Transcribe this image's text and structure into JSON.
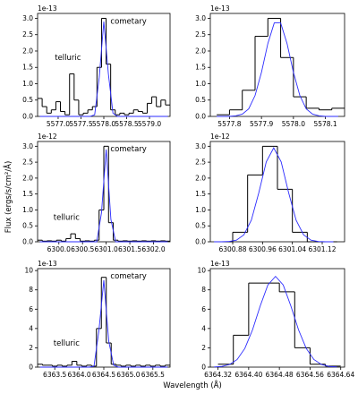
{
  "ylabel": "Flux (ergs/s/cm²/Å)",
  "xlabel": "Wavelength (Å)",
  "chart_data": [
    {
      "type": "line",
      "offset_label": "1e-13",
      "annotations": [
        "telluric",
        "cometary"
      ],
      "xlim": [
        5576.55,
        5579.45
      ],
      "xticks": [
        {
          "value": 5577,
          "label": "5577.0"
        },
        5577.5,
        {
          "value": 5578,
          "label": "5578.0"
        },
        5578.5,
        {
          "value": 5579,
          "label": "5579.0"
        }
      ],
      "ylim": [
        0,
        3.15
      ],
      "yticks": [
        {
          "value": 0,
          "label": "0.0"
        },
        0.5,
        {
          "value": 1,
          "label": "1.0"
        },
        1.5,
        {
          "value": 2,
          "label": "2.0"
        },
        2.5,
        {
          "value": 3,
          "label": "3.0"
        }
      ],
      "series": [
        {
          "color": "#000000",
          "step": true,
          "x": [
            5576.6,
            5576.7,
            5576.8,
            5576.9,
            5577.0,
            5577.1,
            5577.2,
            5577.3,
            5577.4,
            5577.5,
            5577.6,
            5577.7,
            5577.8,
            5577.9,
            5578.0,
            5578.1,
            5578.2,
            5578.3,
            5578.4,
            5578.5,
            5578.6,
            5578.7,
            5578.8,
            5578.9,
            5579.0,
            5579.1,
            5579.2,
            5579.3,
            5579.4
          ],
          "values": [
            0.55,
            0.3,
            0.1,
            0.2,
            0.45,
            0.15,
            0.05,
            1.3,
            0.5,
            0.05,
            0.1,
            0.2,
            0.3,
            1.5,
            3.0,
            1.6,
            0.2,
            0.05,
            0.1,
            0.05,
            0.1,
            0.2,
            0.15,
            0.1,
            0.4,
            0.6,
            0.3,
            0.5,
            0.35
          ]
        },
        {
          "color": "#2b2bff",
          "x": [
            5576.6,
            5576.7,
            5576.8,
            5576.9,
            5577.0,
            5577.1,
            5577.2,
            5577.3,
            5577.4,
            5577.5,
            5577.6,
            5577.7,
            5577.8,
            5577.9,
            5578.0,
            5578.1,
            5578.2,
            5578.3,
            5578.4,
            5578.5,
            5578.6,
            5578.7,
            5578.8,
            5578.9,
            5579.0,
            5579.1,
            5579.2,
            5579.3,
            5579.4
          ],
          "values": [
            0,
            0,
            0,
            0,
            0,
            0,
            0,
            0,
            0,
            0,
            0,
            0,
            0.05,
            1.2,
            2.9,
            1.3,
            0.1,
            0,
            0,
            0,
            0,
            0,
            0,
            0,
            0,
            0,
            0,
            0,
            0
          ]
        }
      ]
    },
    {
      "type": "line",
      "offset_label": "1e-13",
      "xlim": [
        5577.74,
        5578.16
      ],
      "xticks": [
        5577.8,
        5577.9,
        {
          "value": 5578,
          "label": "5578.0"
        },
        5578.1
      ],
      "ylim": [
        0,
        3.15
      ],
      "yticks": [
        {
          "value": 0,
          "label": "0.0"
        },
        0.5,
        {
          "value": 1,
          "label": "1.0"
        },
        1.5,
        {
          "value": 2,
          "label": "2.0"
        },
        2.5,
        {
          "value": 3,
          "label": "3.0"
        }
      ],
      "series": [
        {
          "color": "#000000",
          "step": true,
          "x": [
            5577.78,
            5577.82,
            5577.86,
            5577.9,
            5577.94,
            5577.98,
            5578.02,
            5578.06,
            5578.1,
            5578.14
          ],
          "values": [
            0.05,
            0.2,
            0.8,
            2.45,
            3.0,
            1.8,
            0.6,
            0.25,
            0.2,
            0.25
          ]
        },
        {
          "color": "#2b2bff",
          "x": [
            5577.76,
            5577.78,
            5577.8,
            5577.82,
            5577.84,
            5577.86,
            5577.88,
            5577.9,
            5577.92,
            5577.94,
            5577.96,
            5577.98,
            5578.0,
            5578.02,
            5578.04,
            5578.06,
            5578.08,
            5578.1,
            5578.12,
            5578.14
          ],
          "values": [
            0,
            0,
            0,
            0.02,
            0.07,
            0.23,
            0.64,
            1.35,
            2.23,
            2.86,
            2.86,
            2.23,
            1.35,
            0.64,
            0.23,
            0.07,
            0.02,
            0,
            0,
            0
          ]
        }
      ]
    },
    {
      "type": "line",
      "offset_label": "1e-12",
      "annotations": [
        "telluric",
        "cometary"
      ],
      "xlim": [
        6299.55,
        6302.35
      ],
      "xticks": [
        {
          "value": 6300,
          "label": "6300.0"
        },
        6300.5,
        {
          "value": 6301,
          "label": "6301.0"
        },
        6301.5,
        {
          "value": 6302,
          "label": "6302.0"
        }
      ],
      "ylim": [
        0,
        3.15
      ],
      "yticks": [
        {
          "value": 0,
          "label": "0.0"
        },
        0.5,
        {
          "value": 1,
          "label": "1.0"
        },
        1.5,
        {
          "value": 2,
          "label": "2.0"
        },
        2.5,
        {
          "value": 3,
          "label": "3.0"
        }
      ],
      "series": [
        {
          "color": "#000000",
          "step": true,
          "x": [
            6299.6,
            6299.7,
            6299.8,
            6299.9,
            6300.0,
            6300.1,
            6300.2,
            6300.3,
            6300.4,
            6300.5,
            6300.6,
            6300.7,
            6300.8,
            6300.9,
            6301.0,
            6301.1,
            6301.2,
            6301.3,
            6301.4,
            6301.5,
            6301.6,
            6301.7,
            6301.8,
            6301.9,
            6302.0,
            6302.1,
            6302.2,
            6302.3
          ],
          "values": [
            0.05,
            0.02,
            0.03,
            0.02,
            0.05,
            0.02,
            0.1,
            0.25,
            0.1,
            0.02,
            0.03,
            0.02,
            0.05,
            1.0,
            3.0,
            0.6,
            0.05,
            0.02,
            0.03,
            0.02,
            0.03,
            0.02,
            0.03,
            0.02,
            0.03,
            0.02,
            0.03,
            0.02
          ]
        },
        {
          "color": "#2b2bff",
          "x": [
            6299.6,
            6299.7,
            6299.8,
            6299.9,
            6300.0,
            6300.1,
            6300.2,
            6300.3,
            6300.4,
            6300.5,
            6300.6,
            6300.7,
            6300.8,
            6300.9,
            6301.0,
            6301.1,
            6301.2,
            6301.3,
            6301.4,
            6301.5,
            6301.6,
            6301.7,
            6301.8,
            6301.9,
            6302.0,
            6302.1,
            6302.2,
            6302.3
          ],
          "values": [
            0,
            0,
            0,
            0,
            0,
            0,
            0,
            0,
            0,
            0,
            0,
            0,
            0,
            0.9,
            2.9,
            0.7,
            0,
            0,
            0,
            0,
            0,
            0,
            0,
            0,
            0,
            0,
            0,
            0
          ]
        }
      ]
    },
    {
      "type": "line",
      "offset_label": "1e-12",
      "xlim": [
        6300.82,
        6301.18
      ],
      "xticks": [
        6300.88,
        6300.96,
        6301.04,
        6301.12
      ],
      "ylim": [
        0,
        3.15
      ],
      "yticks": [
        {
          "value": 0,
          "label": "0.0"
        },
        0.5,
        {
          "value": 1,
          "label": "1.0"
        },
        1.5,
        {
          "value": 2,
          "label": "2.0"
        },
        2.5,
        {
          "value": 3,
          "label": "3.0"
        }
      ],
      "series": [
        {
          "color": "#000000",
          "step": true,
          "x": [
            6300.86,
            6300.9,
            6300.94,
            6300.98,
            6301.02,
            6301.06,
            6301.1,
            6301.14
          ],
          "values": [
            0,
            0.3,
            2.1,
            3.0,
            1.65,
            0.3,
            0,
            0
          ]
        },
        {
          "color": "#2b2bff",
          "x": [
            6300.83,
            6300.85,
            6300.87,
            6300.89,
            6300.91,
            6300.93,
            6300.95,
            6300.97,
            6300.99,
            6301.01,
            6301.03,
            6301.05,
            6301.07,
            6301.09,
            6301.11,
            6301.13,
            6301.15
          ],
          "values": [
            0,
            0,
            0.01,
            0.05,
            0.22,
            0.68,
            1.54,
            2.51,
            2.95,
            2.51,
            1.54,
            0.68,
            0.22,
            0.05,
            0.01,
            0,
            0
          ]
        }
      ]
    },
    {
      "type": "line",
      "offset_label": "1e-13",
      "annotations": [
        "telluric",
        "cometary"
      ],
      "xlim": [
        6363.15,
        6365.85
      ],
      "xticks": [
        6363.5,
        {
          "value": 6364,
          "label": "6364.0"
        },
        6364.5,
        {
          "value": 6365,
          "label": "6365.0"
        },
        6365.5
      ],
      "ylim": [
        0,
        10.2
      ],
      "yticks": [
        0,
        2,
        4,
        6,
        8,
        10
      ],
      "series": [
        {
          "color": "#000000",
          "step": true,
          "x": [
            6363.2,
            6363.3,
            6363.4,
            6363.5,
            6363.6,
            6363.7,
            6363.8,
            6363.9,
            6364.0,
            6364.1,
            6364.2,
            6364.3,
            6364.4,
            6364.5,
            6364.6,
            6364.7,
            6364.8,
            6364.9,
            6365.0,
            6365.1,
            6365.2,
            6365.3,
            6365.4,
            6365.5,
            6365.6,
            6365.7,
            6365.8
          ],
          "values": [
            0.3,
            0.2,
            0.2,
            0.1,
            0.2,
            0.1,
            0.2,
            0.6,
            0.2,
            0.1,
            0.2,
            0.1,
            4.0,
            9.3,
            2.5,
            0.3,
            0.2,
            0.1,
            0.2,
            0.1,
            0.2,
            0.1,
            0.2,
            0.1,
            0.2,
            0.1,
            0.2
          ]
        },
        {
          "color": "#2b2bff",
          "x": [
            6363.2,
            6363.3,
            6363.4,
            6363.5,
            6363.6,
            6363.7,
            6363.8,
            6363.9,
            6364.0,
            6364.1,
            6364.2,
            6364.3,
            6364.4,
            6364.5,
            6364.6,
            6364.7,
            6364.8,
            6364.9,
            6365.0,
            6365.1,
            6365.2,
            6365.3,
            6365.4,
            6365.5,
            6365.6,
            6365.7,
            6365.8
          ],
          "values": [
            0,
            0,
            0,
            0,
            0,
            0,
            0,
            0,
            0,
            0,
            0,
            0.1,
            3.8,
            9.0,
            2.7,
            0.2,
            0,
            0,
            0,
            0,
            0,
            0,
            0,
            0,
            0,
            0,
            0
          ]
        }
      ]
    },
    {
      "type": "line",
      "offset_label": "1e-13",
      "xlim": [
        6364.3,
        6364.65
      ],
      "xticks": [
        6364.32,
        {
          "value": 6364.4,
          "label": "6364.40"
        },
        6364.48,
        6364.56,
        6364.64
      ],
      "ylim": [
        0,
        10.2
      ],
      "yticks": [
        0,
        2,
        4,
        6,
        8,
        10
      ],
      "series": [
        {
          "color": "#000000",
          "step": true,
          "x": [
            6364.34,
            6364.38,
            6364.42,
            6364.46,
            6364.5,
            6364.54,
            6364.58,
            6364.62
          ],
          "values": [
            0.3,
            3.3,
            8.7,
            8.7,
            7.8,
            2.0,
            0.3,
            0.1
          ]
        },
        {
          "color": "#2b2bff",
          "x": [
            6364.31,
            6364.33,
            6364.35,
            6364.37,
            6364.39,
            6364.41,
            6364.43,
            6364.45,
            6364.47,
            6364.49,
            6364.51,
            6364.53,
            6364.55,
            6364.57,
            6364.59,
            6364.61,
            6364.63
          ],
          "values": [
            0.02,
            0.07,
            0.27,
            0.79,
            1.94,
            3.86,
            6.33,
            8.51,
            9.4,
            8.51,
            6.33,
            3.86,
            1.94,
            0.79,
            0.27,
            0.07,
            0.02
          ]
        }
      ]
    }
  ]
}
